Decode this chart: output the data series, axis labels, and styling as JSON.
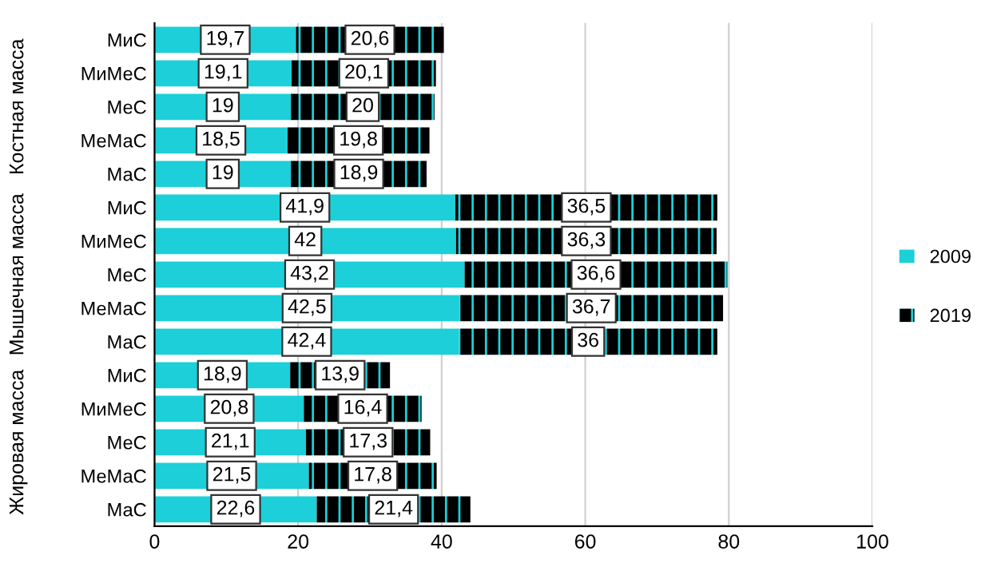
{
  "chart_data": {
    "type": "bar",
    "orientation": "horizontal",
    "stacked": true,
    "categories": [
      "МиС",
      "МиМеС",
      "МеС",
      "МеМаС",
      "МаС",
      "МиС",
      "МиМеС",
      "МеС",
      "МеМаС",
      "МаС",
      "МиС",
      "МиМеС",
      "МеС",
      "МеМаС",
      "МаС"
    ],
    "series": [
      {
        "name": "2009",
        "color": "#1ccfd8",
        "values": [
          19.7,
          19.1,
          19,
          18.5,
          19,
          41.9,
          42,
          43.2,
          42.5,
          42.4,
          18.9,
          20.8,
          21.1,
          21.5,
          22.6
        ],
        "value_labels": [
          "19,7",
          "19,1",
          "19",
          "18,5",
          "19",
          "41,9",
          "42",
          "43,2",
          "42,5",
          "42,4",
          "18,9",
          "20,8",
          "21,1",
          "21,5",
          "22,6"
        ]
      },
      {
        "name": "2019",
        "color": "#000000",
        "values": [
          20.6,
          20.1,
          20,
          19.8,
          18.9,
          36.5,
          36.3,
          36.6,
          36.7,
          36,
          13.9,
          16.4,
          17.3,
          17.8,
          21.4
        ],
        "value_labels": [
          "20,6",
          "20,1",
          "20",
          "19,8",
          "18,9",
          "36,5",
          "36,3",
          "36,6",
          "36,7",
          "36",
          "13,9",
          "16,4",
          "17,3",
          "17,8",
          "21,4"
        ]
      }
    ],
    "annotations": [
      "Костная масса",
      "Мышечная масса",
      "Жировая масса"
    ],
    "xlim": [
      0,
      100
    ],
    "xticks": [
      0,
      20,
      40,
      60,
      80,
      100
    ],
    "grid": "x",
    "legend": "right"
  }
}
